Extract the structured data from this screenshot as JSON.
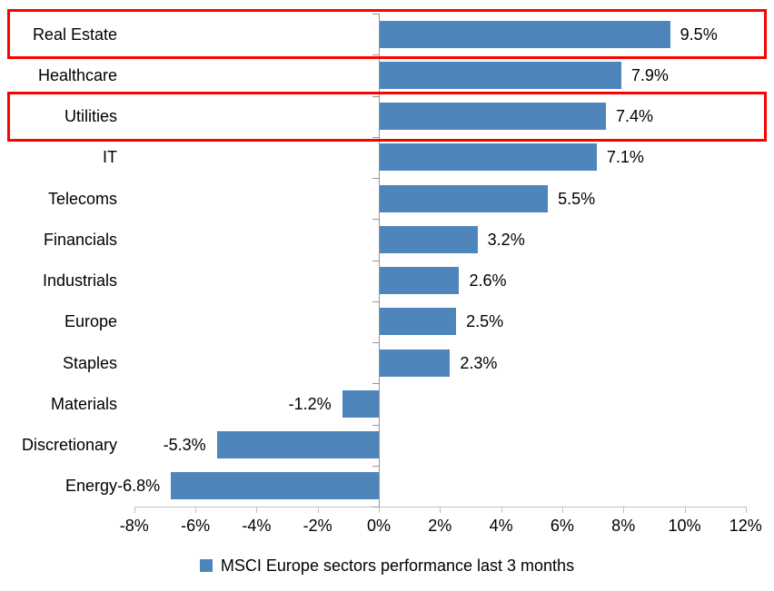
{
  "chart_data": {
    "type": "bar",
    "orientation": "horizontal",
    "title": "",
    "categories": [
      "Real Estate",
      "Healthcare",
      "Utilities",
      "IT",
      "Telecoms",
      "Financials",
      "Industrials",
      "Europe",
      "Staples",
      "Materials",
      "Discretionary",
      "Energy"
    ],
    "values": [
      9.5,
      7.9,
      7.4,
      7.1,
      5.5,
      3.2,
      2.6,
      2.5,
      2.3,
      -1.2,
      -5.3,
      -6.8
    ],
    "value_labels": [
      "9.5%",
      "7.9%",
      "7.4%",
      "7.1%",
      "5.5%",
      "3.2%",
      "2.6%",
      "2.5%",
      "2.3%",
      "-1.2%",
      "-5.3%",
      "-6.8%"
    ],
    "highlighted_categories": [
      "Real Estate",
      "Utilities"
    ],
    "xlim": [
      -8,
      12
    ],
    "x_tick_step": 2,
    "x_tick_labels": [
      "-8%",
      "-6%",
      "-4%",
      "-2%",
      "0%",
      "2%",
      "4%",
      "6%",
      "8%",
      "10%",
      "12%"
    ],
    "grid": false,
    "legend_position": "bottom-center",
    "legend": [
      {
        "label": "MSCI Europe sectors performance last 3 months",
        "color": "#4e86bc"
      }
    ],
    "colors": {
      "bar": "#4e86bc",
      "highlight_box": "#fe0000",
      "value_axis_line": "#c0c0c0",
      "category_axis_line": "#959595",
      "text": "#000000"
    }
  }
}
